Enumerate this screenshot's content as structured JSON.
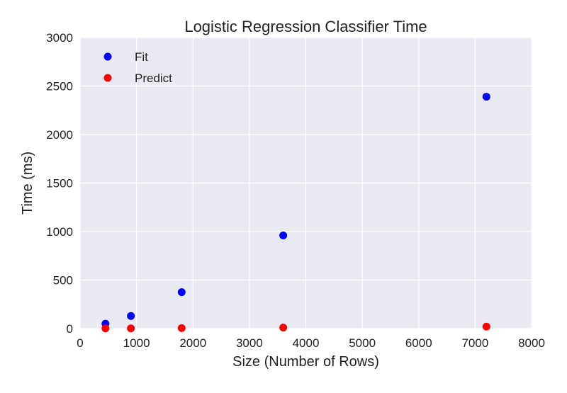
{
  "chart_data": {
    "type": "scatter",
    "title": "Logistic Regression Classifier Time",
    "xlabel": "Size (Number of Rows)",
    "ylabel": "Time (ms)",
    "xlim": [
      0,
      8000
    ],
    "ylim": [
      0,
      3000
    ],
    "xticks": [
      0,
      1000,
      2000,
      3000,
      4000,
      5000,
      6000,
      7000,
      8000
    ],
    "yticks": [
      0,
      500,
      1000,
      1500,
      2000,
      2500,
      3000
    ],
    "xtick_labels": [
      "0",
      "1000",
      "2000",
      "3000",
      "4000",
      "5000",
      "6000",
      "7000",
      "8000"
    ],
    "ytick_labels": [
      "0",
      "500",
      "1000",
      "1500",
      "2000",
      "2500",
      "3000"
    ],
    "grid": true,
    "legend_position": "top-left",
    "series": [
      {
        "name": "Fit",
        "color": "#0000ff",
        "points": [
          {
            "x": 450,
            "y": 50
          },
          {
            "x": 900,
            "y": 130
          },
          {
            "x": 1800,
            "y": 375
          },
          {
            "x": 3600,
            "y": 960
          },
          {
            "x": 7200,
            "y": 2390
          }
        ]
      },
      {
        "name": "Predict",
        "color": "#ff0000",
        "points": [
          {
            "x": 450,
            "y": 2
          },
          {
            "x": 900,
            "y": 2
          },
          {
            "x": 1800,
            "y": 5
          },
          {
            "x": 3600,
            "y": 10
          },
          {
            "x": 7200,
            "y": 20
          }
        ]
      }
    ]
  }
}
